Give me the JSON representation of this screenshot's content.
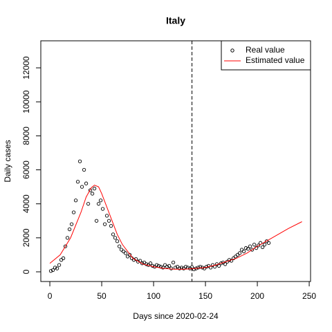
{
  "chart_data": {
    "type": "scatter",
    "title": "Italy",
    "x_label": "Days since 2020-02-24",
    "y_label": "Daily cases",
    "xlim": [
      -8.7,
      251.3
    ],
    "ylim": [
      -570,
      13590
    ],
    "xticks": [
      0,
      50,
      100,
      150,
      200,
      250
    ],
    "yticks": [
      0,
      2000,
      4000,
      6000,
      8000,
      10000,
      12000
    ],
    "vline": 137,
    "legend": "top-right",
    "series": [
      {
        "name": "Real value",
        "type": "scatter",
        "color": "#000000",
        "x": [
          1,
          3,
          5,
          7,
          9,
          11,
          13,
          15,
          17,
          19,
          21,
          23,
          25,
          27,
          29,
          31,
          33,
          35,
          37,
          39,
          41,
          43,
          45,
          47,
          49,
          51,
          53,
          55,
          57,
          59,
          61,
          63,
          65,
          67,
          69,
          71,
          73,
          75,
          77,
          79,
          81,
          83,
          85,
          87,
          89,
          91,
          93,
          95,
          97,
          99,
          101,
          103,
          105,
          107,
          109,
          111,
          113,
          115,
          117,
          119,
          121,
          123,
          125,
          127,
          129,
          131,
          133,
          135,
          137,
          139,
          141,
          143,
          145,
          147,
          149,
          151,
          153,
          155,
          157,
          159,
          161,
          163,
          165,
          167,
          169,
          171,
          173,
          175,
          177,
          179,
          181,
          183,
          185,
          187,
          189,
          191,
          193,
          195,
          197,
          199,
          201,
          203,
          205,
          207,
          209,
          211
        ],
        "values": [
          50,
          100,
          250,
          200,
          400,
          700,
          800,
          1500,
          2000,
          2500,
          2800,
          3500,
          4200,
          5300,
          6500,
          5000,
          6000,
          5200,
          4000,
          4800,
          4600,
          4900,
          3000,
          4000,
          4200,
          3700,
          2800,
          3300,
          3000,
          2700,
          2200,
          2000,
          1800,
          1500,
          1300,
          1200,
          1100,
          900,
          1000,
          800,
          700,
          750,
          600,
          650,
          500,
          550,
          450,
          400,
          500,
          350,
          300,
          400,
          350,
          300,
          250,
          400,
          300,
          350,
          200,
          550,
          250,
          300,
          200,
          250,
          200,
          300,
          250,
          200,
          280,
          150,
          200,
          250,
          300,
          250,
          200,
          300,
          350,
          250,
          400,
          300,
          450,
          350,
          500,
          550,
          450,
          600,
          700,
          650,
          800,
          900,
          1000,
          1100,
          1300,
          1200,
          1400,
          1350,
          1500,
          1300,
          1600,
          1400,
          1550,
          1700,
          1450,
          1600,
          1800,
          1700
        ]
      },
      {
        "name": "Estimated value",
        "type": "line",
        "color": "#ff0000",
        "x": [
          0,
          10,
          20,
          30,
          35,
          40,
          43,
          47,
          50,
          55,
          60,
          65,
          70,
          80,
          90,
          100,
          110,
          120,
          130,
          140,
          150,
          160,
          170,
          180,
          190,
          200,
          210,
          220,
          230,
          243
        ],
        "values": [
          500,
          1000,
          2000,
          3500,
          4400,
          4950,
          5100,
          5000,
          4600,
          3800,
          3000,
          2200,
          1600,
          800,
          450,
          300,
          200,
          150,
          150,
          200,
          250,
          400,
          600,
          800,
          1100,
          1500,
          1850,
          2200,
          2550,
          2950
        ]
      }
    ]
  }
}
